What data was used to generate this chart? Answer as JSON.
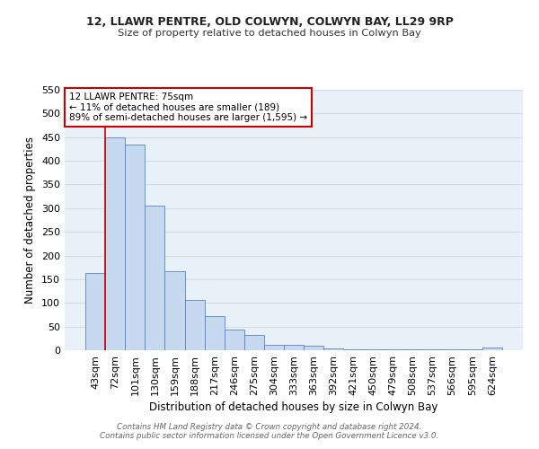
{
  "title1": "12, LLAWR PENTRE, OLD COLWYN, COLWYN BAY, LL29 9RP",
  "title2": "Size of property relative to detached houses in Colwyn Bay",
  "xlabel": "Distribution of detached houses by size in Colwyn Bay",
  "ylabel": "Number of detached properties",
  "bar_values": [
    163,
    450,
    435,
    306,
    166,
    106,
    73,
    44,
    33,
    12,
    11,
    9,
    4,
    2,
    2,
    1,
    1,
    1,
    1,
    1,
    5
  ],
  "bar_labels": [
    "43sqm",
    "72sqm",
    "101sqm",
    "130sqm",
    "159sqm",
    "188sqm",
    "217sqm",
    "246sqm",
    "275sqm",
    "304sqm",
    "333sqm",
    "363sqm",
    "392sqm",
    "421sqm",
    "450sqm",
    "479sqm",
    "508sqm",
    "537sqm",
    "566sqm",
    "595sqm",
    "624sqm"
  ],
  "bar_color": "#c6d9f0",
  "bar_edge_color": "#5585c0",
  "grid_color": "#d0dde8",
  "property_line_color": "#cc0000",
  "annotation_text": "12 LLAWR PENTRE: 75sqm\n← 11% of detached houses are smaller (189)\n89% of semi-detached houses are larger (1,595) →",
  "annotation_box_color": "#ffffff",
  "annotation_box_edge": "#cc0000",
  "ylim": [
    0,
    550
  ],
  "yticks": [
    0,
    50,
    100,
    150,
    200,
    250,
    300,
    350,
    400,
    450,
    500,
    550
  ],
  "footer": "Contains HM Land Registry data © Crown copyright and database right 2024.\nContains public sector information licensed under the Open Government Licence v3.0.",
  "background_color": "#ffffff",
  "plot_bg_color": "#e8f0f8"
}
